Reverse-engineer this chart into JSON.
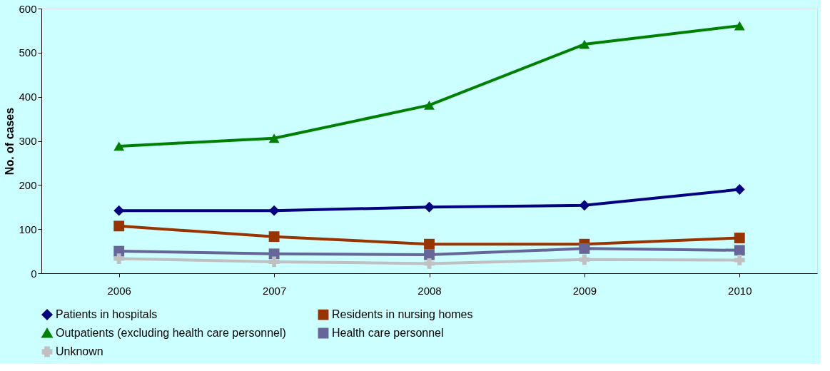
{
  "chart_data": {
    "type": "line",
    "ylabel": "No. of cases",
    "categories": [
      "2006",
      "2007",
      "2008",
      "2009",
      "2010"
    ],
    "series": [
      {
        "name": "Patients in hospitals",
        "color": "#000080",
        "marker": "diamond",
        "values": [
          142,
          142,
          150,
          154,
          190
        ]
      },
      {
        "name": "Residents in nursing homes",
        "color": "#993300",
        "marker": "square",
        "values": [
          107,
          83,
          66,
          66,
          80
        ]
      },
      {
        "name": "Outpatients (excluding health care personnel)",
        "color": "#008000",
        "marker": "triangle",
        "values": [
          288,
          306,
          381,
          519,
          561
        ]
      },
      {
        "name": "Health care personnel",
        "color": "#666699",
        "marker": "square",
        "values": [
          50,
          44,
          42,
          56,
          52
        ]
      },
      {
        "name": "Unknown",
        "color": "#c0c0c0",
        "marker": "cross",
        "values": [
          33,
          26,
          22,
          31,
          30
        ]
      }
    ],
    "ylim": [
      0,
      600
    ],
    "yticks": [
      0,
      100,
      200,
      300,
      400,
      500,
      600
    ],
    "grid": false,
    "legend": "bottom",
    "line_style": "solid"
  }
}
